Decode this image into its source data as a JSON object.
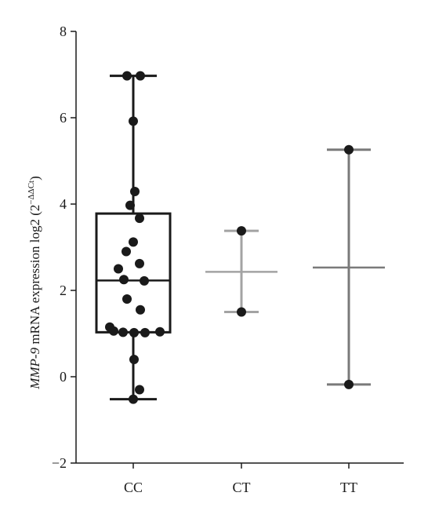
{
  "chart_data": {
    "type": "box",
    "ylabel_italic": "MMP-9",
    "ylabel_text": " mRNA expression log2 (2",
    "ylabel_sup": "−ΔΔCt",
    "ylabel_close": ")",
    "ylim": [
      -2,
      8
    ],
    "yticks": [
      -2,
      0,
      2,
      4,
      6,
      8
    ],
    "ytick_labels": [
      "−2",
      "0",
      "2",
      "4",
      "6",
      "8"
    ],
    "categories": [
      "CC",
      "CT",
      "TT"
    ],
    "groups": [
      {
        "name": "CC",
        "kind": "box",
        "q1": 1.03,
        "median": 2.23,
        "q3": 3.78,
        "whisker_low": -0.52,
        "whisker_high": 6.97,
        "points": [
          6.97,
          6.97,
          5.92,
          4.29,
          3.97,
          3.67,
          3.12,
          2.9,
          2.62,
          2.5,
          2.25,
          2.22,
          1.8,
          1.55,
          1.15,
          1.06,
          1.03,
          1.02,
          1.02,
          1.04,
          0.4,
          -0.3,
          -0.52
        ],
        "color": "#1a1a1a"
      },
      {
        "name": "CT",
        "kind": "range",
        "mean": 2.43,
        "low": 1.5,
        "high": 3.38,
        "points": [
          3.38,
          1.5
        ],
        "color": "#a3a3a3"
      },
      {
        "name": "TT",
        "kind": "range",
        "mean": 2.53,
        "low": -0.18,
        "high": 5.26,
        "points": [
          5.26,
          -0.18
        ],
        "color": "#7a7a7a"
      }
    ],
    "grid": false,
    "legend": "none"
  }
}
